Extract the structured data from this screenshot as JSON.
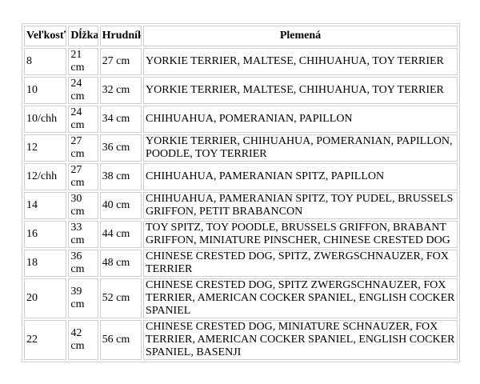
{
  "table": {
    "headers": {
      "size": "Veľkosť",
      "length": "Dĺžka",
      "chest": "Hrudník",
      "breeds": "Plemená"
    },
    "rows": [
      {
        "size": "8",
        "length": "21 cm",
        "chest": "27 cm",
        "breeds": "YORKIE TERRIER, MALTESE, CHIHUAHUA, TOY TERRIER"
      },
      {
        "size": "10",
        "length": "24 cm",
        "chest": "32 cm",
        "breeds": "YORKIE TERRIER, MALTESE, CHIHUAHUA, TOY TERRIER"
      },
      {
        "size": "10/chh",
        "length": "24 cm",
        "chest": "34 cm",
        "breeds": "CHIHUAHUA, POMERANIAN, PAPILLON"
      },
      {
        "size": "12",
        "length": "27 cm",
        "chest": "36 cm",
        "breeds": "YORKIE TERRIER, CHIHUAHUA, POMERANIAN, PAPILLON, POODLE, TOY TERRIER"
      },
      {
        "size": "12/chh",
        "length": "27 cm",
        "chest": "38 cm",
        "breeds": "CHIHUAHUA, PAMERANIAN SPITZ, PAPILLON"
      },
      {
        "size": "14",
        "length": "30 cm",
        "chest": "40 cm",
        "breeds": "CHIHUAHUA, PAMERANIAN SPITZ, TOY PUDEL, BRUSSELS GRIFFON, PETIT BRABANCON"
      },
      {
        "size": "16",
        "length": "33 cm",
        "chest": "44 cm",
        "breeds": "TOY SPITZ, TOY POODLE, BRUSSELS GRIFFON, BRABANT GRIFFON, MINIATURE PINSCHER, CHINESE CRESTED DOG"
      },
      {
        "size": "18",
        "length": "36 cm",
        "chest": "48 cm",
        "breeds": "CHINESE CRESTED DOG, SPITZ, ZWERGSCHNAUZER, FOX TERRIER"
      },
      {
        "size": "20",
        "length": "39 cm",
        "chest": "52 cm",
        "breeds": "CHINESE CRESTED DOG, SPITZ ZWERGSCHNAUZER, FOX TERRIER, AMERICAN COCKER SPANIEL, ENGLISH COCKER SPANIEL"
      },
      {
        "size": "22",
        "length": "42 cm",
        "chest": "56 cm",
        "breeds": "CHINESE CRESTED DOG, MINIATURE SCHNAUZER, FOX TERRIER, AMERICAN COCKER SPANIEL, ENGLISH COCKER SPANIEL, BASENJI"
      }
    ]
  },
  "colors": {
    "background": "#ffffff",
    "border": "#cfcfcf",
    "text": "#000000"
  }
}
